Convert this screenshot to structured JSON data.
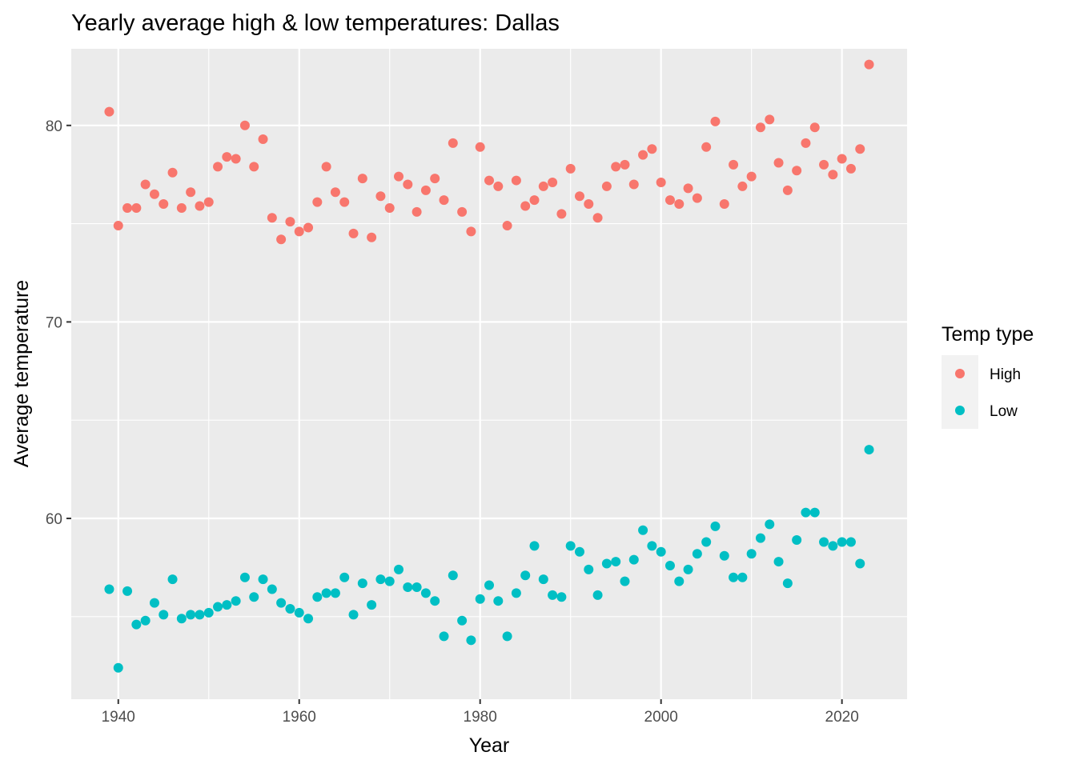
{
  "chart_data": {
    "type": "scatter",
    "title": "Yearly average high & low temperatures: Dallas",
    "xlabel": "Year",
    "ylabel": "Average temperature",
    "xlim": [
      1934.8,
      2027.2
    ],
    "ylim": [
      50.8,
      83.9
    ],
    "x_ticks": [
      1940,
      1960,
      1980,
      2000,
      2020
    ],
    "y_ticks": [
      60,
      70,
      80
    ],
    "grid": true,
    "legend": {
      "title": "Temp type",
      "position": "right"
    },
    "x": [
      1939,
      1940,
      1941,
      1942,
      1943,
      1944,
      1945,
      1946,
      1947,
      1948,
      1949,
      1950,
      1951,
      1952,
      1953,
      1954,
      1955,
      1956,
      1957,
      1958,
      1959,
      1960,
      1961,
      1962,
      1963,
      1964,
      1965,
      1966,
      1967,
      1968,
      1969,
      1970,
      1971,
      1972,
      1973,
      1974,
      1975,
      1976,
      1977,
      1978,
      1979,
      1980,
      1981,
      1982,
      1983,
      1984,
      1985,
      1986,
      1987,
      1988,
      1989,
      1990,
      1991,
      1992,
      1993,
      1994,
      1995,
      1996,
      1997,
      1998,
      1999,
      2000,
      2001,
      2002,
      2003,
      2004,
      2005,
      2006,
      2007,
      2008,
      2009,
      2010,
      2011,
      2012,
      2013,
      2014,
      2015,
      2016,
      2017,
      2018,
      2019,
      2020,
      2021,
      2022,
      2023
    ],
    "series": [
      {
        "name": "High",
        "color": "#F8766D",
        "values": [
          80.7,
          74.9,
          75.8,
          75.8,
          77.0,
          76.5,
          76.0,
          77.6,
          75.8,
          76.6,
          75.9,
          76.1,
          77.9,
          78.4,
          78.3,
          80.0,
          77.9,
          79.3,
          75.3,
          74.2,
          75.1,
          74.6,
          74.8,
          76.1,
          77.9,
          76.6,
          76.1,
          74.5,
          77.3,
          74.3,
          76.4,
          75.8,
          77.4,
          77.0,
          75.6,
          76.7,
          77.3,
          76.2,
          79.1,
          75.6,
          74.6,
          78.9,
          77.2,
          76.9,
          74.9,
          77.2,
          75.9,
          76.2,
          76.9,
          77.1,
          75.5,
          77.8,
          76.4,
          76.0,
          75.3,
          76.9,
          77.9,
          78.0,
          77.0,
          78.5,
          78.8,
          77.1,
          76.2,
          76.0,
          76.8,
          76.3,
          78.9,
          80.2,
          76.0,
          78.0,
          76.9,
          77.4,
          79.9,
          80.3,
          78.1,
          76.7,
          77.7,
          79.1,
          79.9,
          78.0,
          77.5,
          78.3,
          77.8,
          78.8,
          83.1
        ]
      },
      {
        "name": "Low",
        "color": "#00BFC4",
        "values": [
          56.4,
          52.4,
          56.3,
          54.6,
          54.8,
          55.7,
          55.1,
          56.9,
          54.9,
          55.1,
          55.1,
          55.2,
          55.5,
          55.6,
          55.8,
          57.0,
          56.0,
          56.9,
          56.4,
          55.7,
          55.4,
          55.2,
          54.9,
          56.0,
          56.2,
          56.2,
          57.0,
          55.1,
          56.7,
          55.6,
          56.9,
          56.8,
          57.4,
          56.5,
          56.5,
          56.2,
          55.8,
          54.0,
          57.1,
          54.8,
          53.8,
          55.9,
          56.6,
          55.8,
          54.0,
          56.2,
          57.1,
          58.6,
          56.9,
          56.1,
          56.0,
          58.6,
          58.3,
          57.4,
          56.1,
          57.7,
          57.8,
          56.8,
          57.9,
          59.4,
          58.6,
          58.3,
          57.6,
          56.8,
          57.4,
          58.2,
          58.8,
          59.6,
          58.1,
          57.0,
          57.0,
          58.2,
          59.0,
          59.7,
          57.8,
          56.7,
          58.9,
          60.3,
          60.3,
          58.8,
          58.6,
          58.8,
          58.8,
          57.7,
          63.5
        ]
      }
    ]
  }
}
